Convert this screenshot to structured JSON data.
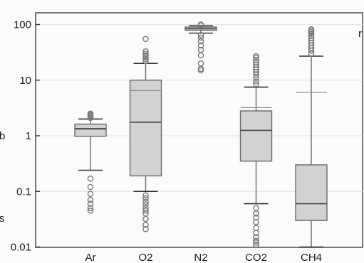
{
  "chart_data": {
    "type": "box",
    "title": "",
    "xlabel": "",
    "ylabel": "",
    "yscale": "log",
    "ylim": [
      0.01,
      150
    ],
    "y_ticks": [
      {
        "value": 0.01,
        "label": "0.01"
      },
      {
        "value": 0.1,
        "label": "0.1"
      },
      {
        "value": 1,
        "label": "1"
      },
      {
        "value": 10,
        "label": "10"
      },
      {
        "value": 100,
        "label": "100"
      }
    ],
    "grid": true,
    "legend": "none",
    "categories": [
      "Ar",
      "O2",
      "N2",
      "CO2",
      "CH4"
    ],
    "boxes": [
      {
        "category": "Ar",
        "whisker_low": 0.24,
        "q1": 0.98,
        "median": 1.35,
        "mean": 1.3,
        "q3": 1.62,
        "whisker_high": 2.0,
        "outliers_low": [
          0.17,
          0.12,
          0.09,
          0.07,
          0.06,
          0.05,
          0.045
        ],
        "outliers_high": [
          2.1,
          2.2,
          2.3,
          2.4,
          2.5
        ]
      },
      {
        "category": "O2",
        "whisker_low": 0.1,
        "q1": 0.19,
        "median": 1.75,
        "mean": 6.5,
        "q3": 10,
        "whisker_high": 20,
        "outliers_low": [
          0.085,
          0.075,
          0.065,
          0.058,
          0.05,
          0.045,
          0.04,
          0.032,
          0.025,
          0.021
        ],
        "outliers_high": [
          22,
          24,
          26,
          28,
          30,
          33,
          55
        ]
      },
      {
        "category": "N2",
        "whisker_low": 70,
        "q1": 79,
        "median": 84,
        "mean": 86,
        "q3": 90,
        "whisker_high": 95,
        "outliers_low": [
          65,
          58,
          50,
          42,
          35,
          28,
          20,
          16,
          15
        ],
        "outliers_high": [
          97,
          100
        ]
      },
      {
        "category": "CO2",
        "whisker_low": 0.06,
        "q1": 0.35,
        "median": 1.25,
        "mean": 3.2,
        "q3": 2.8,
        "whisker_high": 7.5,
        "outliers_low": [
          0.05,
          0.04,
          0.034,
          0.028,
          0.022,
          0.018,
          0.015,
          0.013,
          0.012,
          0.011
        ],
        "outliers_high": [
          8.5,
          9.5,
          11,
          12.5,
          14,
          15.5,
          17,
          19,
          21,
          23,
          25,
          27
        ]
      },
      {
        "category": "CH4",
        "whisker_low": 0.01,
        "q1": 0.03,
        "median": 0.06,
        "mean": 6,
        "q3": 0.3,
        "whisker_high": 27,
        "outliers_low": [],
        "outliers_high": [
          30,
          34,
          38,
          42,
          47,
          52,
          57,
          62,
          68,
          73,
          78,
          82
        ]
      }
    ],
    "box_fill": "#d2d2d2",
    "box_stroke": "#6a6a6a",
    "outlier_stroke": "#7a7a7a"
  },
  "fragments": {
    "left_letters": [
      "b",
      "s"
    ],
    "right_letters": [
      "r"
    ]
  }
}
